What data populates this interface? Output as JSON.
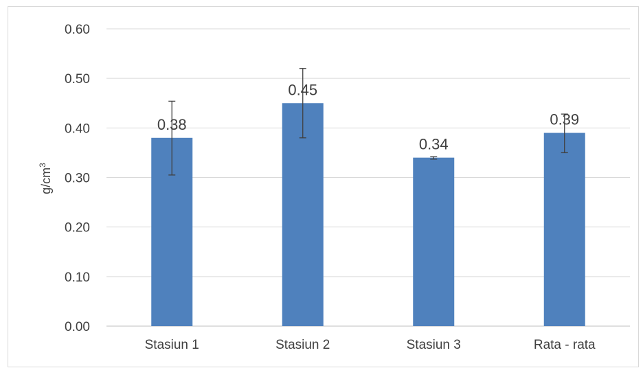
{
  "chart_data": {
    "type": "bar",
    "categories": [
      "Stasiun 1",
      "Stasiun 2",
      "Stasiun 3",
      "Rata - rata"
    ],
    "values": [
      0.38,
      0.45,
      0.34,
      0.39
    ],
    "value_labels": [
      "0.38",
      "0.45",
      "0.34",
      "0.39"
    ],
    "error_bars": [
      {
        "low": 0.305,
        "high": 0.454
      },
      {
        "low": 0.38,
        "high": 0.52
      },
      {
        "low": 0.337,
        "high": 0.342
      },
      {
        "low": 0.35,
        "high": 0.428
      }
    ],
    "ylabel": "g/cm",
    "ylabel_superscript": "3",
    "ylim": [
      0,
      0.6
    ],
    "yticks": [
      "0.00",
      "0.10",
      "0.20",
      "0.30",
      "0.40",
      "0.50",
      "0.60"
    ],
    "grid": true,
    "legend": "none",
    "colors": {
      "bar": "#4f81bd",
      "grid": "#d9d9d9",
      "axis": "#bfbfbf",
      "error_bar": "#404040",
      "text": "#404040"
    }
  }
}
